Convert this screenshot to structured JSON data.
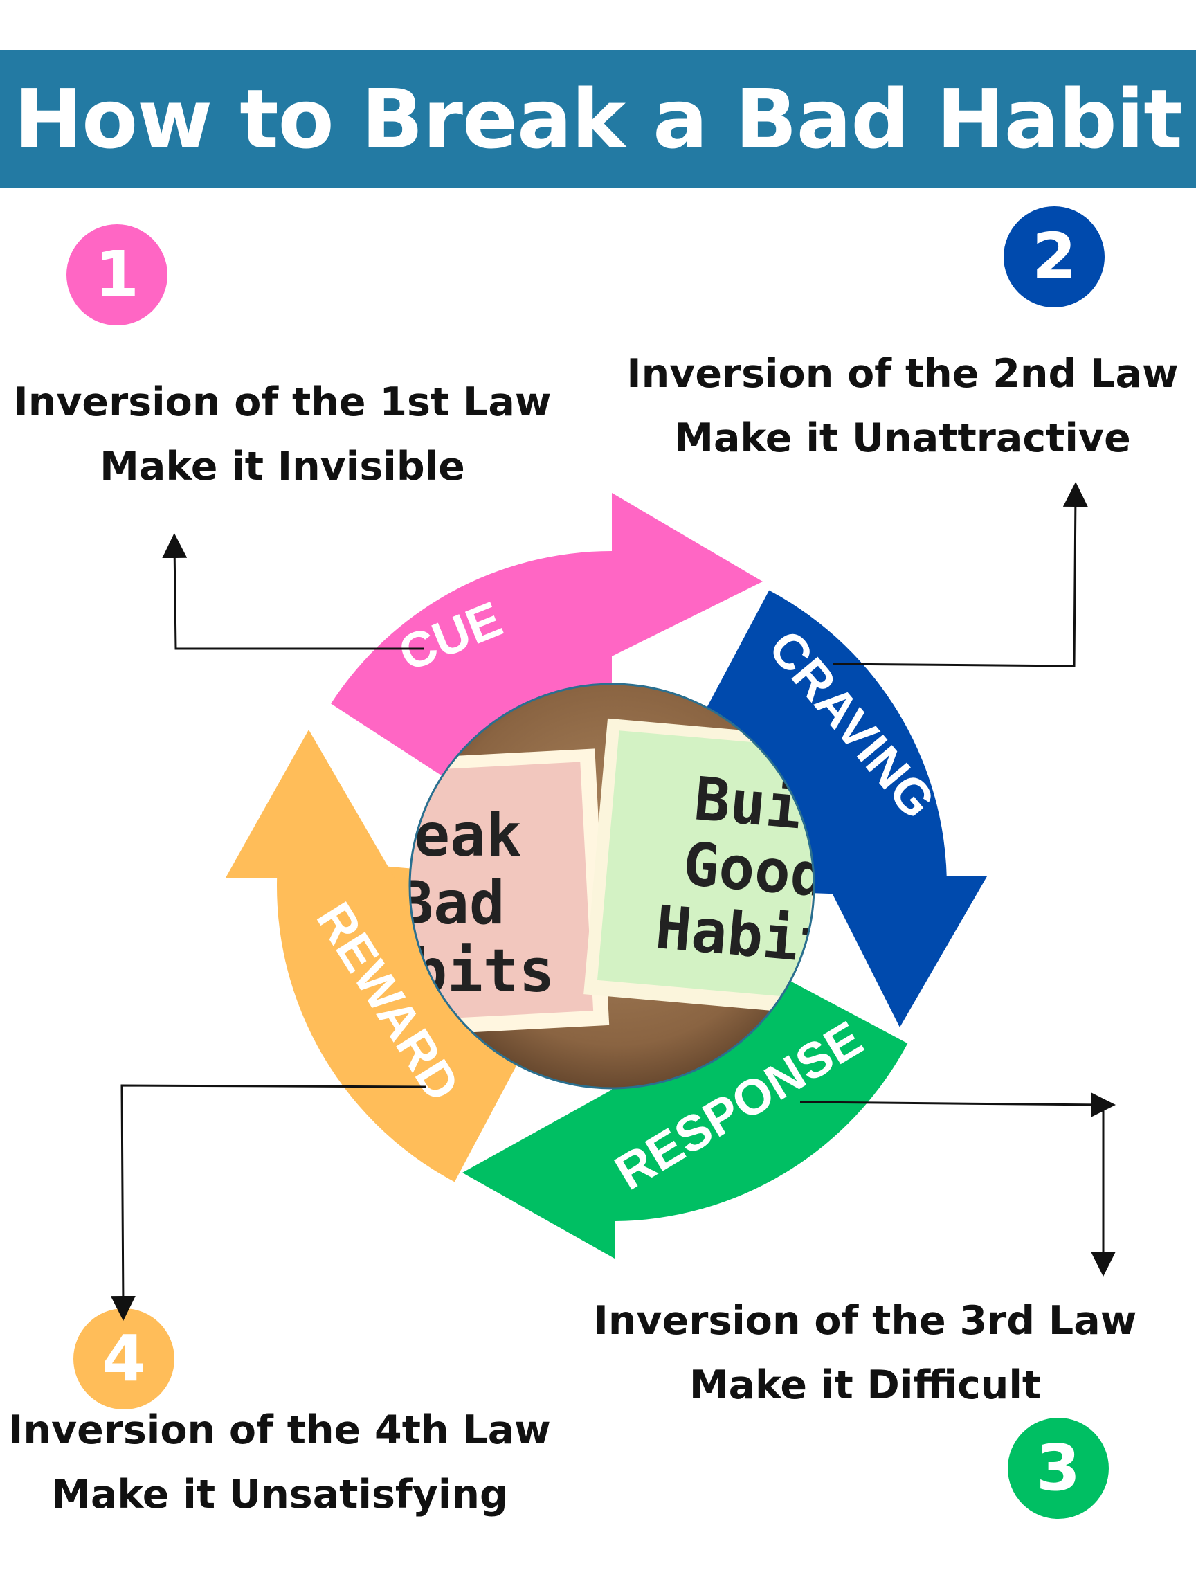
{
  "title": "How to Break a Bad Habit",
  "colors": {
    "banner": "#237aa3",
    "cue": "#ff66c4",
    "craving": "#004aad",
    "response": "#00bf63",
    "reward": "#ffbd59",
    "text": "#111111"
  },
  "cycle": {
    "stages": [
      "CUE",
      "CRAVING",
      "RESPONSE",
      "REWARD"
    ],
    "center_photo": {
      "note_left": [
        "reak",
        "Bad",
        "abits"
      ],
      "note_right": [
        "Buil",
        "Good",
        "Habit"
      ]
    }
  },
  "steps": [
    {
      "number": "1",
      "law": "Inversion of the 1st Law",
      "action": "Make it Invisible"
    },
    {
      "number": "2",
      "law": "Inversion of the 2nd Law",
      "action": "Make it Unattractive"
    },
    {
      "number": "3",
      "law": "Inversion of the 3rd Law",
      "action": "Make it Difficult"
    },
    {
      "number": "4",
      "law": "Inversion of the 4th Law",
      "action": "Make it Unsatisfying"
    }
  ]
}
